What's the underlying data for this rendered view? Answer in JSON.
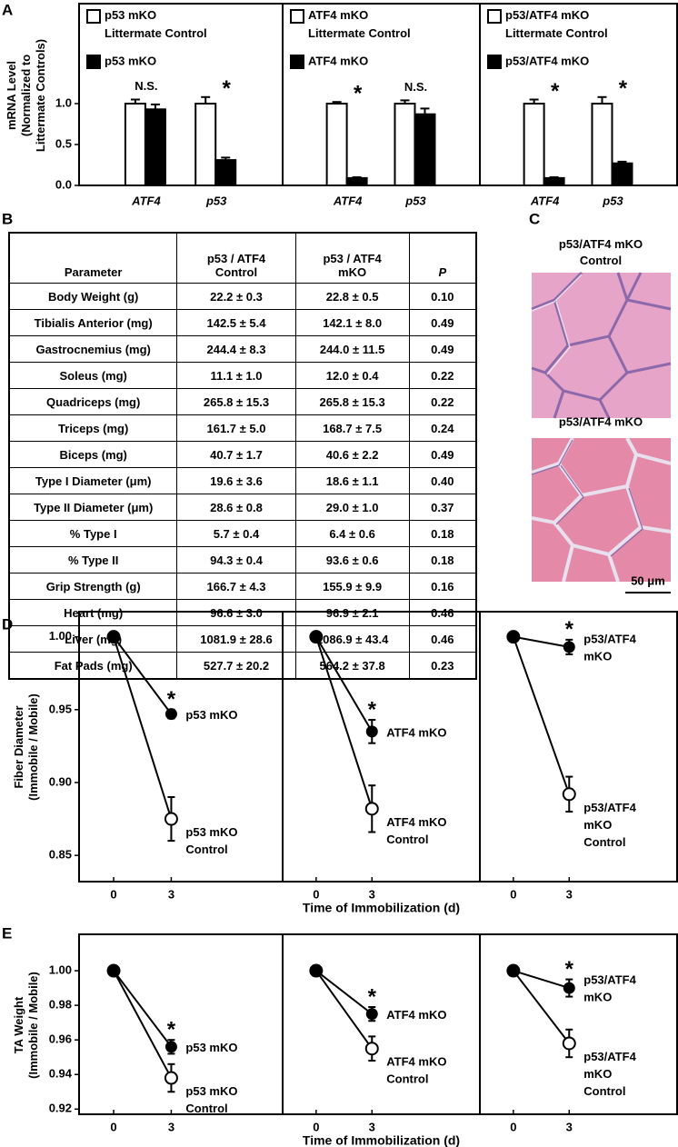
{
  "panel_labels": [
    "A",
    "B",
    "C",
    "D",
    "E"
  ],
  "chart_data": [
    {
      "type": "bar",
      "categories": [
        "ATF4",
        "p53"
      ],
      "ylim": [
        0,
        2.2
      ],
      "yticks": [
        {
          "value": 0,
          "label": "0.0"
        },
        0.5,
        {
          "value": 1,
          "label": "1.0"
        }
      ],
      "y_label": "mRNA Level\n(Normalized to\nLittermate Controls)",
      "series": [
        {
          "name": "p53 mKO\nLittermate Control",
          "color": "#ffffff",
          "values": [
            1.0,
            1.0
          ],
          "errors": [
            0.05,
            0.08
          ]
        },
        {
          "name": "p53 mKO",
          "color": "#000000",
          "values": [
            0.93,
            0.31
          ],
          "errors": [
            0.06,
            0.03
          ]
        }
      ],
      "annotations": [
        "N.S.",
        "*"
      ]
    },
    {
      "type": "bar",
      "categories": [
        "ATF4",
        "p53"
      ],
      "ylim": [
        0,
        2.2
      ],
      "series": [
        {
          "name": "ATF4 mKO\nLittermate Control",
          "color": "#ffffff",
          "values": [
            1.0,
            1.0
          ],
          "errors": [
            0.02,
            0.04
          ]
        },
        {
          "name": "ATF4 mKO",
          "color": "#000000",
          "values": [
            0.09,
            0.87
          ],
          "errors": [
            0.01,
            0.07
          ]
        }
      ],
      "annotations": [
        "*",
        "N.S."
      ]
    },
    {
      "type": "bar",
      "categories": [
        "ATF4",
        "p53"
      ],
      "ylim": [
        0,
        2.2
      ],
      "series": [
        {
          "name": "p53/ATF4 mKO\nLittermate Control",
          "color": "#ffffff",
          "values": [
            1.0,
            1.0
          ],
          "errors": [
            0.05,
            0.08
          ]
        },
        {
          "name": "p53/ATF4 mKO",
          "color": "#000000",
          "values": [
            0.09,
            0.27
          ],
          "errors": [
            0.01,
            0.02
          ]
        }
      ],
      "annotations": [
        "*",
        "*"
      ]
    },
    {
      "type": "line",
      "x": [
        0,
        3
      ],
      "xlim": [
        -1.8,
        8.8
      ],
      "xticks": [
        0,
        3
      ],
      "ylim": [
        0.832,
        1.016
      ],
      "yticks": [
        0.85,
        {
          "value": 0.9,
          "label": "0.90"
        },
        0.95,
        {
          "value": 1,
          "label": "1.00"
        }
      ],
      "y_label": "Fiber Diameter\n(Immobile / Mobile)",
      "series": [
        {
          "name": "p53 mKO",
          "color": "#000000",
          "values": [
            1.0,
            0.947
          ],
          "errors": [
            0.002,
            0.003
          ]
        },
        {
          "name": "p53 mKO\nControl",
          "color": "#ffffff",
          "values": [
            1.0,
            0.875
          ],
          "errors": [
            0.002,
            0.015
          ]
        }
      ],
      "annotations": [
        null,
        "*"
      ]
    },
    {
      "type": "line",
      "x": [
        0,
        3
      ],
      "xlim": [
        -1.8,
        8.8
      ],
      "xticks": [
        0,
        3
      ],
      "ylim": [
        0.832,
        1.016
      ],
      "x_label": "Time of Immobilization (d)",
      "series": [
        {
          "name": "ATF4 mKO",
          "color": "#000000",
          "values": [
            1.0,
            0.935
          ],
          "errors": [
            0.002,
            0.008
          ]
        },
        {
          "name": "ATF4 mKO\nControl",
          "color": "#ffffff",
          "values": [
            1.0,
            0.882
          ],
          "errors": [
            0.002,
            0.016
          ]
        }
      ],
      "annotations": [
        null,
        "*"
      ]
    },
    {
      "type": "line",
      "x": [
        0,
        3
      ],
      "xlim": [
        -1.8,
        8.8
      ],
      "xticks": [
        0,
        3
      ],
      "ylim": [
        0.832,
        1.016
      ],
      "series": [
        {
          "name": "p53/ATF4\nmKO",
          "color": "#000000",
          "values": [
            1.0,
            0.993
          ],
          "errors": [
            0.002,
            0.005
          ]
        },
        {
          "name": "p53/ATF4\nmKO\nControl",
          "color": "#ffffff",
          "values": [
            1.0,
            0.892
          ],
          "errors": [
            0.002,
            0.012
          ]
        }
      ],
      "annotations": [
        null,
        "*"
      ]
    },
    {
      "type": "line",
      "x": [
        0,
        3
      ],
      "xlim": [
        -1.8,
        8.8
      ],
      "xticks": [
        0,
        3
      ],
      "ylim": [
        0.917,
        1.02
      ],
      "yticks": [
        0.92,
        0.94,
        0.96,
        0.98,
        {
          "value": 1,
          "label": "1.00"
        }
      ],
      "y_label": "TA Weight\n(Immobile / Mobile)",
      "series": [
        {
          "name": "p53 mKO",
          "color": "#000000",
          "values": [
            1.0,
            0.956
          ],
          "errors": [
            0.001,
            0.004
          ]
        },
        {
          "name": "p53 mKO\nControl",
          "color": "#ffffff",
          "values": [
            1.0,
            0.938
          ],
          "errors": [
            0.001,
            0.008
          ]
        }
      ],
      "annotations": [
        null,
        "*"
      ]
    },
    {
      "type": "line",
      "x": [
        0,
        3
      ],
      "xlim": [
        -1.8,
        8.8
      ],
      "xticks": [
        0,
        3
      ],
      "ylim": [
        0.917,
        1.02
      ],
      "x_label": "Time of Immobilization (d)",
      "series": [
        {
          "name": "ATF4 mKO",
          "color": "#000000",
          "values": [
            1.0,
            0.975
          ],
          "errors": [
            0.001,
            0.004
          ]
        },
        {
          "name": "ATF4 mKO\nControl",
          "color": "#ffffff",
          "values": [
            1.0,
            0.955
          ],
          "errors": [
            0.001,
            0.007
          ]
        }
      ],
      "annotations": [
        null,
        "*"
      ]
    },
    {
      "type": "line",
      "x": [
        0,
        3
      ],
      "xlim": [
        -1.8,
        8.8
      ],
      "xticks": [
        0,
        3
      ],
      "ylim": [
        0.917,
        1.02
      ],
      "series": [
        {
          "name": "p53/ATF4\nmKO",
          "color": "#000000",
          "values": [
            1.0,
            0.99
          ],
          "errors": [
            0.001,
            0.005
          ]
        },
        {
          "name": "p53/ATF4\nmKO\nControl",
          "color": "#ffffff",
          "values": [
            1.0,
            0.958
          ],
          "errors": [
            0.001,
            0.008
          ]
        }
      ],
      "annotations": [
        null,
        "*"
      ]
    }
  ],
  "table": {
    "header": [
      "Parameter",
      "p53 / ATF4\nControl",
      "p53 / ATF4\nmKO",
      "P"
    ],
    "rows": [
      [
        "Body Weight (g)",
        "22.2 ± 0.3",
        "22.8 ± 0.5",
        "0.10"
      ],
      [
        "Tibialis Anterior (mg)",
        "142.5 ± 5.4",
        "142.1 ± 8.0",
        "0.49"
      ],
      [
        "Gastrocnemius (mg)",
        "244.4 ± 8.3",
        "244.0 ± 11.5",
        "0.49"
      ],
      [
        "Soleus (mg)",
        "11.1 ± 1.0",
        "12.0 ± 0.4",
        "0.22"
      ],
      [
        "Quadriceps (mg)",
        "265.8 ± 15.3",
        "265.8 ± 15.3",
        "0.22"
      ],
      [
        "Triceps (mg)",
        "161.7 ± 5.0",
        "168.7 ± 7.5",
        "0.24"
      ],
      [
        "Biceps (mg)",
        "40.7 ± 1.7",
        "40.6 ± 2.2",
        "0.49"
      ],
      [
        "Type I Diameter (μm)",
        "19.6 ± 3.6",
        "18.6 ± 1.1",
        "0.40"
      ],
      [
        "Type II Diameter (μm)",
        "28.6 ± 0.8",
        "29.0 ± 1.0",
        "0.37"
      ],
      [
        "% Type I",
        "5.7 ± 0.4",
        "6.4 ± 0.6",
        "0.18"
      ],
      [
        "% Type II",
        "94.3 ± 0.4",
        "93.6 ± 0.6",
        "0.18"
      ],
      [
        "Grip Strength (g)",
        "166.7 ± 4.3",
        "155.9 ± 9.9",
        "0.16"
      ],
      [
        "Heart (mg)",
        "96.6 ± 3.0",
        "96.9 ± 2.1",
        "0.46"
      ],
      [
        "Liver (mg)",
        "1081.9 ± 28.6",
        "1086.9 ± 43.4",
        "0.46"
      ],
      [
        "Fat Pads (mg)",
        "527.7 ± 20.2",
        "564.2 ± 37.8",
        "0.23"
      ]
    ]
  },
  "micrographs": {
    "titles": [
      "p53/ATF4 mKO\nControl",
      "p53/ATF4 mKO"
    ],
    "scale_bar": "50 μm"
  }
}
